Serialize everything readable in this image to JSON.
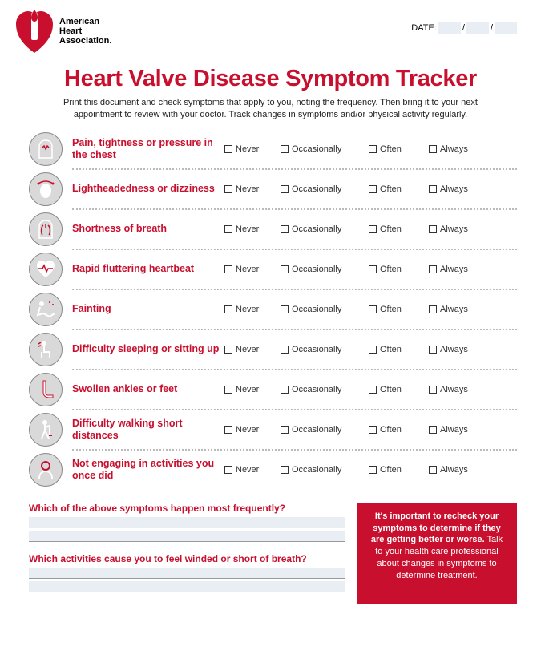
{
  "brand": {
    "name_line1": "American",
    "name_line2": "Heart",
    "name_line3": "Association."
  },
  "date_label": "DATE:",
  "title": "Heart Valve Disease Symptom Tracker",
  "subtitle": "Print this document and check symptoms that apply to you, noting the frequency. Then bring it to your next appointment to review with your doctor. Track changes in symptoms and/or physical activity regularly.",
  "frequency_options": [
    "Never",
    "Occasionally",
    "Often",
    "Always"
  ],
  "symptoms": [
    {
      "label": "Pain, tightness or pressure in the chest",
      "icon": "chest-pain"
    },
    {
      "label": "Lightheadedness or dizziness",
      "icon": "dizziness"
    },
    {
      "label": "Shortness of breath",
      "icon": "lungs"
    },
    {
      "label": "Rapid fluttering heartbeat",
      "icon": "heartbeat"
    },
    {
      "label": "Fainting",
      "icon": "fainting"
    },
    {
      "label": "Difficulty sleeping or sitting up",
      "icon": "sitting"
    },
    {
      "label": "Swollen ankles or feet",
      "icon": "foot"
    },
    {
      "label": "Difficulty walking short distances",
      "icon": "walking"
    },
    {
      "label": "Not engaging in activities you once did",
      "icon": "person-head"
    }
  ],
  "questions": [
    "Which of the above symptoms happen most frequently?",
    "Which activities cause you to feel winded or short of breath?"
  ],
  "callout": {
    "bold": "It's important to recheck your symptoms to determine if they are getting better or worse.",
    "rest": " Talk to your health care professional about changes in symptoms to determine treatment."
  },
  "colors": {
    "brand_red": "#c8102e",
    "field_bg": "#e8eef3",
    "icon_bg": "#d9d9d9"
  }
}
